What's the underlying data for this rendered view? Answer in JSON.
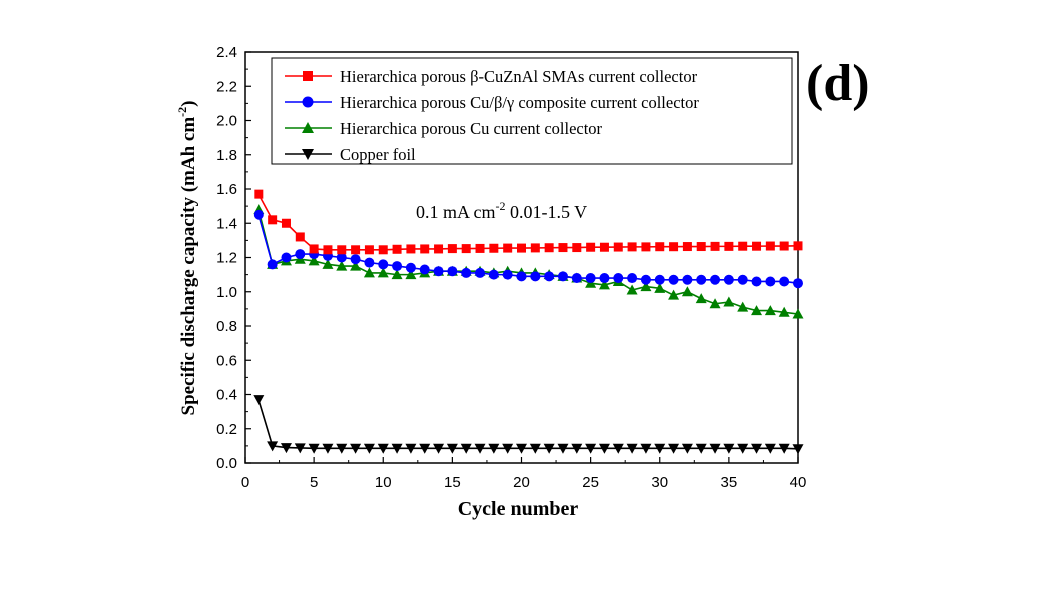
{
  "panel_label": "(d)",
  "chart_data": {
    "type": "line",
    "xlabel": "Cycle number",
    "ylabel": "Specific discharge capacity (mAh cm",
    "ylabel_sup": "-2",
    "ylabel_tail": ")",
    "xlim": [
      0,
      40
    ],
    "ylim": [
      0,
      2.4
    ],
    "x_ticks": [
      "0",
      "5",
      "10",
      "15",
      "20",
      "25",
      "30",
      "35",
      "40"
    ],
    "y_ticks": [
      "0.0",
      "0.2",
      "0.4",
      "0.6",
      "0.8",
      "1.0",
      "1.2",
      "1.4",
      "1.6",
      "1.8",
      "2.0",
      "2.2",
      "2.4"
    ],
    "annotation": {
      "part1": "0.1 mA cm",
      "sup": "-2",
      "part2": " 0.01-1.5 V"
    },
    "legend_position": "top",
    "grid": false,
    "x": [
      1,
      2,
      3,
      4,
      5,
      6,
      7,
      8,
      9,
      10,
      11,
      12,
      13,
      14,
      15,
      16,
      17,
      18,
      19,
      20,
      21,
      22,
      23,
      24,
      25,
      26,
      27,
      28,
      29,
      30,
      31,
      32,
      33,
      34,
      35,
      36,
      37,
      38,
      39,
      40
    ],
    "series": [
      {
        "name": "Hierarchica porous β-CuZnAl SMAs current collector",
        "color": "#ff0000",
        "marker": "square",
        "values": [
          1.57,
          1.42,
          1.4,
          1.32,
          1.25,
          1.245,
          1.245,
          1.245,
          1.245,
          1.245,
          1.248,
          1.25,
          1.25,
          1.25,
          1.252,
          1.252,
          1.253,
          1.254,
          1.255,
          1.255,
          1.256,
          1.257,
          1.258,
          1.258,
          1.26,
          1.26,
          1.261,
          1.262,
          1.262,
          1.263,
          1.263,
          1.264,
          1.264,
          1.265,
          1.265,
          1.266,
          1.266,
          1.267,
          1.267,
          1.268
        ]
      },
      {
        "name": "Hierarchica porous Cu/β/γ  composite current collector",
        "color": "#0000ff",
        "marker": "circle",
        "values": [
          1.45,
          1.16,
          1.2,
          1.22,
          1.22,
          1.21,
          1.2,
          1.19,
          1.17,
          1.16,
          1.15,
          1.14,
          1.13,
          1.12,
          1.12,
          1.11,
          1.11,
          1.1,
          1.1,
          1.09,
          1.09,
          1.09,
          1.09,
          1.08,
          1.08,
          1.08,
          1.08,
          1.08,
          1.07,
          1.07,
          1.07,
          1.07,
          1.07,
          1.07,
          1.07,
          1.07,
          1.06,
          1.06,
          1.06,
          1.05
        ]
      },
      {
        "name": "Hierarchica porous Cu current collector",
        "color": "#008000",
        "marker": "triangle-up",
        "values": [
          1.48,
          1.16,
          1.18,
          1.19,
          1.18,
          1.16,
          1.15,
          1.15,
          1.11,
          1.11,
          1.1,
          1.1,
          1.11,
          1.12,
          1.12,
          1.12,
          1.12,
          1.11,
          1.12,
          1.11,
          1.11,
          1.1,
          1.09,
          1.08,
          1.05,
          1.04,
          1.06,
          1.01,
          1.03,
          1.02,
          0.98,
          1.0,
          0.96,
          0.93,
          0.94,
          0.91,
          0.89,
          0.89,
          0.88,
          0.87
        ]
      },
      {
        "name": "Copper foil",
        "color": "#000000",
        "marker": "triangle-down",
        "values": [
          0.37,
          0.1,
          0.09,
          0.088,
          0.086,
          0.086,
          0.086,
          0.086,
          0.086,
          0.086,
          0.086,
          0.086,
          0.086,
          0.086,
          0.086,
          0.086,
          0.086,
          0.086,
          0.086,
          0.086,
          0.086,
          0.086,
          0.086,
          0.086,
          0.086,
          0.086,
          0.086,
          0.086,
          0.086,
          0.086,
          0.086,
          0.086,
          0.086,
          0.086,
          0.086,
          0.086,
          0.086,
          0.086,
          0.086,
          0.083
        ]
      }
    ]
  }
}
